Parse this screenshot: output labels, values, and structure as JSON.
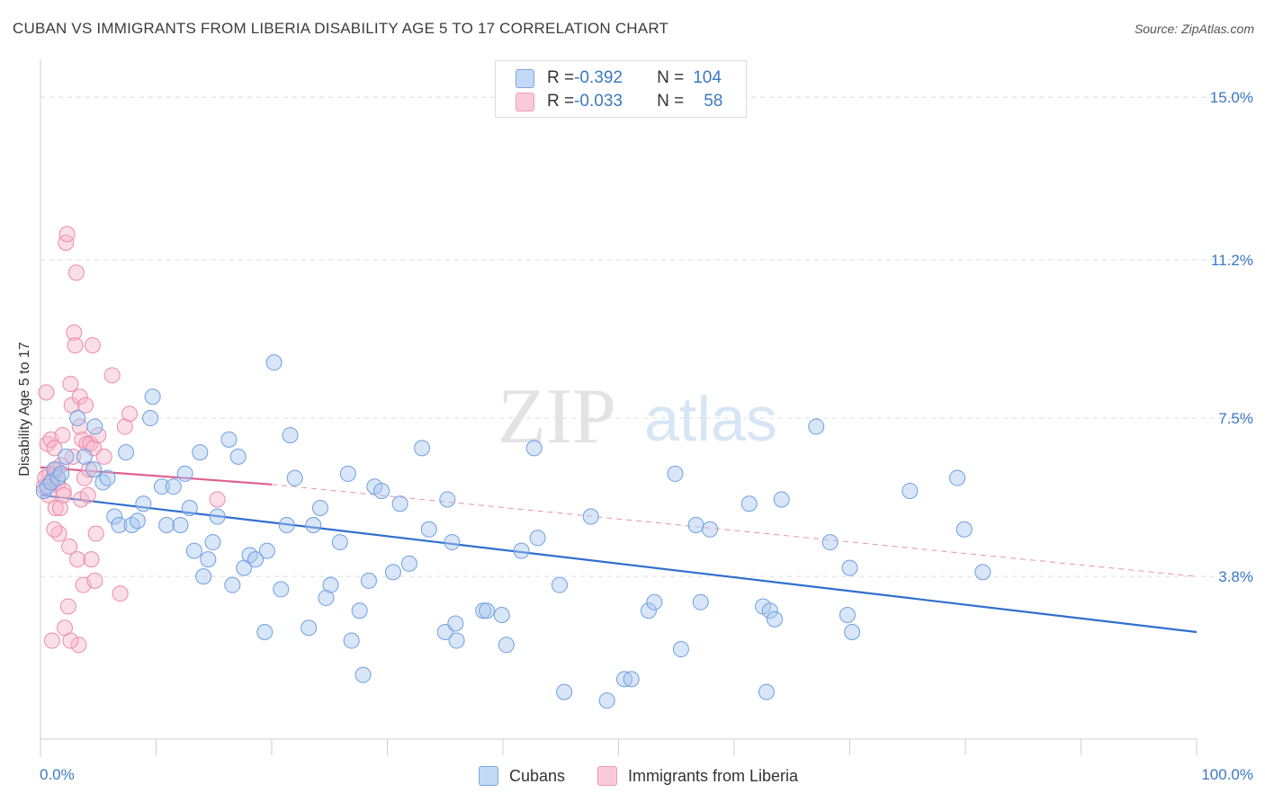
{
  "title": "CUBAN VS IMMIGRANTS FROM LIBERIA DISABILITY AGE 5 TO 17 CORRELATION CHART",
  "source": "Source: ZipAtlas.com",
  "watermark": {
    "zip": "ZIP",
    "atlas": "atlas"
  },
  "colors": {
    "blue_fill": "#a9c8f0",
    "blue_stroke": "#6f9fe0",
    "blue_line": "#2f6fcf",
    "pink_fill": "#f6b8cc",
    "pink_stroke": "#ec8aa8",
    "pink_line": "#e06090",
    "tick_text": "#3b78c4",
    "grid": "#dcdcdc"
  },
  "legend": {
    "rows": [
      {
        "r_label": "R = ",
        "r_value": "-0.392",
        "n_label": "N = ",
        "n_value": "104"
      },
      {
        "r_label": "R = ",
        "r_value": "-0.033",
        "n_label": "N = ",
        "n_value": "58"
      }
    ]
  },
  "bottom_legend": {
    "series1": "Cubans",
    "series2": "Immigrants from Liberia"
  },
  "chart_data": {
    "type": "scatter",
    "title": "CUBAN VS IMMIGRANTS FROM LIBERIA DISABILITY AGE 5 TO 17 CORRELATION CHART",
    "xlabel": "",
    "ylabel": "Disability Age 5 to 17",
    "xlim": [
      0,
      100
    ],
    "ylim": [
      0,
      15.8
    ],
    "x_tick_labels": [
      "0.0%",
      "100.0%"
    ],
    "y_ticks": [
      3.8,
      7.5,
      11.2,
      15.0
    ],
    "y_tick_labels": [
      "3.8%",
      "7.5%",
      "11.2%",
      "15.0%"
    ],
    "grid": true,
    "legend_position": "top-center",
    "series": [
      {
        "name": "Cubans",
        "color": "#a9c8f0",
        "trend": {
          "x": [
            0,
            100
          ],
          "y": [
            5.7,
            2.5
          ]
        },
        "points": [
          [
            0.3,
            5.8
          ],
          [
            0.6,
            5.9
          ],
          [
            0.9,
            6.0
          ],
          [
            1.2,
            6.3
          ],
          [
            1.5,
            6.1
          ],
          [
            1.8,
            6.2
          ],
          [
            2.2,
            6.6
          ],
          [
            3.2,
            7.5
          ],
          [
            3.8,
            6.6
          ],
          [
            4.6,
            6.3
          ],
          [
            4.7,
            7.3
          ],
          [
            5.4,
            6.0
          ],
          [
            5.8,
            6.1
          ],
          [
            6.4,
            5.2
          ],
          [
            6.8,
            5.0
          ],
          [
            7.4,
            6.7
          ],
          [
            7.9,
            5.0
          ],
          [
            8.4,
            5.1
          ],
          [
            8.9,
            5.5
          ],
          [
            9.5,
            7.5
          ],
          [
            9.7,
            8.0
          ],
          [
            10.5,
            5.9
          ],
          [
            10.9,
            5.0
          ],
          [
            11.5,
            5.9
          ],
          [
            12.1,
            5.0
          ],
          [
            12.5,
            6.2
          ],
          [
            12.9,
            5.4
          ],
          [
            13.3,
            4.4
          ],
          [
            13.8,
            6.7
          ],
          [
            14.1,
            3.8
          ],
          [
            14.5,
            4.2
          ],
          [
            14.9,
            4.6
          ],
          [
            15.3,
            5.2
          ],
          [
            16.3,
            7.0
          ],
          [
            16.6,
            3.6
          ],
          [
            17.1,
            6.6
          ],
          [
            17.6,
            4.0
          ],
          [
            18.1,
            4.3
          ],
          [
            18.6,
            4.2
          ],
          [
            19.4,
            2.5
          ],
          [
            19.6,
            4.4
          ],
          [
            20.2,
            8.8
          ],
          [
            20.8,
            3.5
          ],
          [
            21.3,
            5.0
          ],
          [
            21.6,
            7.1
          ],
          [
            22.0,
            6.1
          ],
          [
            23.2,
            2.6
          ],
          [
            23.6,
            5.0
          ],
          [
            24.2,
            5.4
          ],
          [
            24.7,
            3.3
          ],
          [
            25.1,
            3.6
          ],
          [
            25.9,
            4.6
          ],
          [
            26.6,
            6.2
          ],
          [
            27.6,
            3.0
          ],
          [
            26.9,
            2.3
          ],
          [
            27.9,
            1.5
          ],
          [
            28.4,
            3.7
          ],
          [
            28.9,
            5.9
          ],
          [
            29.5,
            5.8
          ],
          [
            30.5,
            3.9
          ],
          [
            31.1,
            5.5
          ],
          [
            31.9,
            4.1
          ],
          [
            33.0,
            6.8
          ],
          [
            33.6,
            4.9
          ],
          [
            35.0,
            2.5
          ],
          [
            35.2,
            5.6
          ],
          [
            35.6,
            4.6
          ],
          [
            35.9,
            2.7
          ],
          [
            36.0,
            2.3
          ],
          [
            38.3,
            3.0
          ],
          [
            38.6,
            3.0
          ],
          [
            39.9,
            2.9
          ],
          [
            40.3,
            2.2
          ],
          [
            41.6,
            4.4
          ],
          [
            42.7,
            6.8
          ],
          [
            43.0,
            4.7
          ],
          [
            44.9,
            3.6
          ],
          [
            45.3,
            1.1
          ],
          [
            47.6,
            5.2
          ],
          [
            49.0,
            0.9
          ],
          [
            50.5,
            1.4
          ],
          [
            51.1,
            1.4
          ],
          [
            52.6,
            3.0
          ],
          [
            53.1,
            3.2
          ],
          [
            54.9,
            6.2
          ],
          [
            55.4,
            2.1
          ],
          [
            56.7,
            5.0
          ],
          [
            57.1,
            3.2
          ],
          [
            57.9,
            4.9
          ],
          [
            61.3,
            5.5
          ],
          [
            62.5,
            3.1
          ],
          [
            62.8,
            1.1
          ],
          [
            63.1,
            3.0
          ],
          [
            63.5,
            2.8
          ],
          [
            64.1,
            5.6
          ],
          [
            67.1,
            7.3
          ],
          [
            68.3,
            4.6
          ],
          [
            69.8,
            2.9
          ],
          [
            70.0,
            4.0
          ],
          [
            70.2,
            2.5
          ],
          [
            75.2,
            5.8
          ],
          [
            79.3,
            6.1
          ],
          [
            79.9,
            4.9
          ],
          [
            81.5,
            3.9
          ]
        ]
      },
      {
        "name": "Immigrants from Liberia",
        "color": "#f6b8cc",
        "trend": {
          "x": [
            0,
            20
          ],
          "y": [
            6.35,
            5.95
          ]
        },
        "trend_ext": {
          "x": [
            20,
            100
          ],
          "y": [
            5.95,
            3.8
          ]
        },
        "points": [
          [
            0.3,
            5.9
          ],
          [
            0.4,
            6.1
          ],
          [
            0.5,
            8.1
          ],
          [
            0.6,
            6.9
          ],
          [
            0.7,
            5.7
          ],
          [
            0.8,
            6.2
          ],
          [
            0.9,
            7.0
          ],
          [
            1.0,
            6.0
          ],
          [
            1.1,
            6.1
          ],
          [
            1.2,
            6.8
          ],
          [
            1.3,
            5.4
          ],
          [
            1.4,
            6.3
          ],
          [
            1.5,
            6.0
          ],
          [
            1.6,
            4.8
          ],
          [
            1.7,
            5.4
          ],
          [
            1.8,
            6.4
          ],
          [
            1.9,
            7.1
          ],
          [
            2.0,
            5.8
          ],
          [
            2.1,
            2.6
          ],
          [
            2.2,
            11.6
          ],
          [
            2.3,
            11.8
          ],
          [
            2.4,
            3.1
          ],
          [
            2.5,
            4.5
          ],
          [
            2.6,
            8.3
          ],
          [
            2.7,
            7.8
          ],
          [
            2.8,
            6.6
          ],
          [
            2.9,
            9.5
          ],
          [
            3.0,
            9.2
          ],
          [
            3.1,
            10.9
          ],
          [
            3.2,
            4.2
          ],
          [
            3.3,
            2.2
          ],
          [
            3.4,
            8.0
          ],
          [
            3.5,
            5.6
          ],
          [
            3.6,
            7.0
          ],
          [
            3.7,
            3.6
          ],
          [
            3.8,
            6.1
          ],
          [
            3.9,
            7.8
          ],
          [
            4.0,
            6.9
          ],
          [
            4.1,
            5.7
          ],
          [
            4.2,
            6.3
          ],
          [
            4.3,
            6.9
          ],
          [
            4.4,
            4.2
          ],
          [
            4.5,
            9.2
          ],
          [
            4.6,
            6.8
          ],
          [
            4.7,
            3.7
          ],
          [
            4.8,
            4.8
          ],
          [
            5.0,
            7.1
          ],
          [
            5.5,
            6.6
          ],
          [
            6.2,
            8.5
          ],
          [
            6.9,
            3.4
          ],
          [
            7.3,
            7.3
          ],
          [
            7.7,
            7.6
          ],
          [
            15.3,
            5.6
          ],
          [
            1.0,
            2.3
          ],
          [
            2.6,
            2.3
          ],
          [
            1.2,
            4.9
          ],
          [
            2.0,
            5.7
          ],
          [
            3.4,
            7.3
          ]
        ]
      }
    ]
  }
}
